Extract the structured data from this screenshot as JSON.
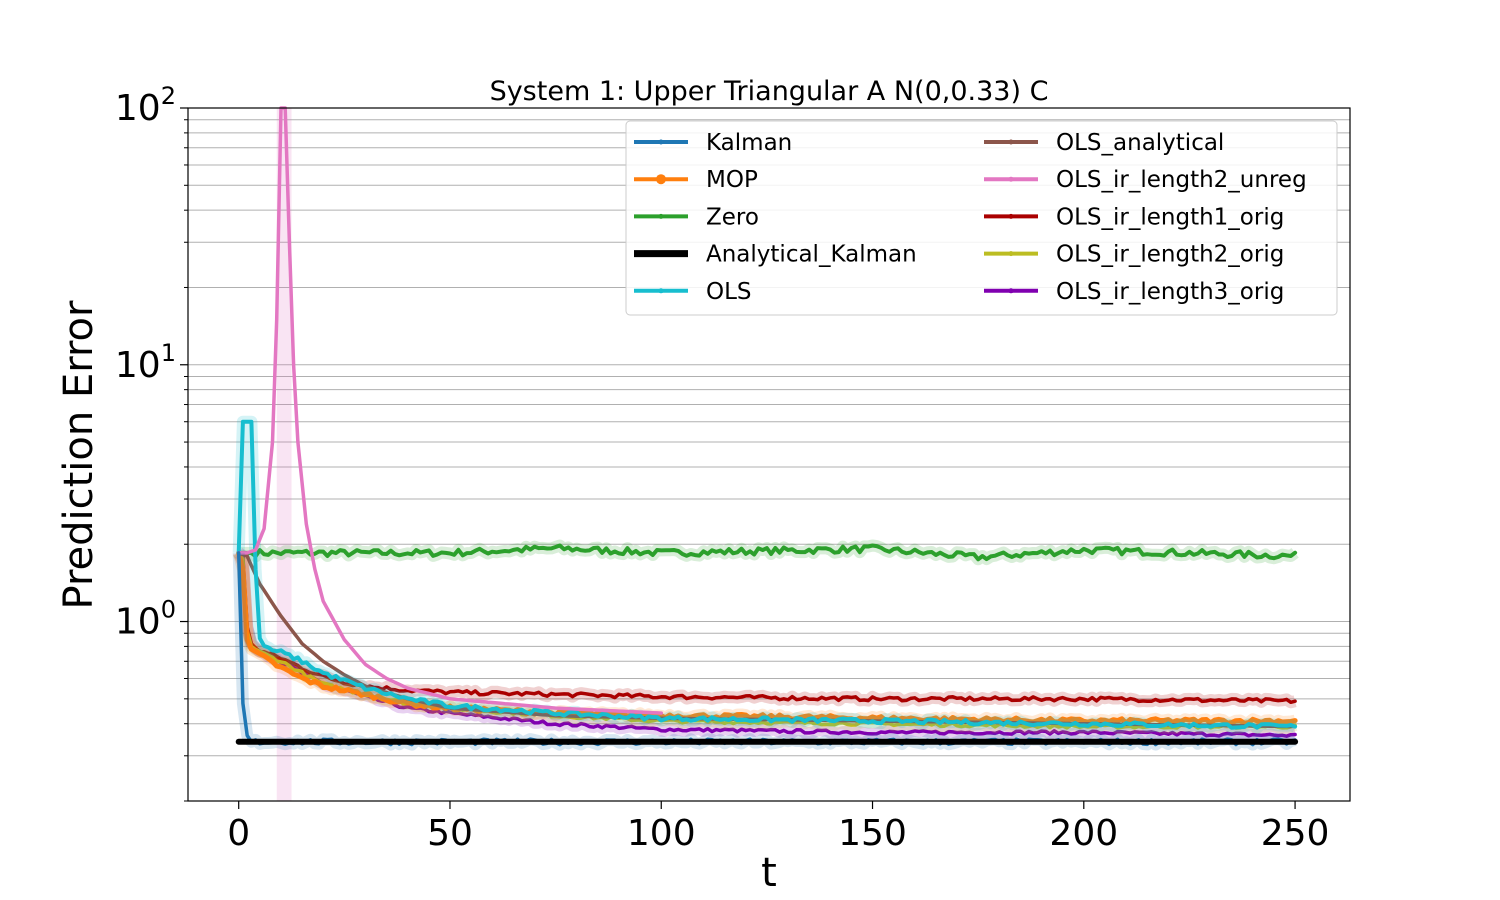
{
  "chart_data": {
    "type": "line",
    "title": "System 1: Upper Triangular A N(0,0.33) C",
    "xlabel": "t",
    "ylabel": "Prediction Error",
    "xlim": [
      -12,
      263
    ],
    "ylim": [
      0.2,
      100
    ],
    "yscale": "log",
    "grid": "horizontal (major and minor, y-axis)",
    "legend_placement": "upper right, 2 columns",
    "xticks": [
      0,
      50,
      100,
      150,
      200,
      250
    ],
    "xtick_labels": [
      "0",
      "50",
      "100",
      "150",
      "200",
      "250"
    ],
    "yticks": [
      1,
      10,
      100
    ],
    "ytick_labels": [
      {
        "base": "10",
        "exp": "0"
      },
      {
        "base": "10",
        "exp": "1"
      },
      {
        "base": "10",
        "exp": "2"
      }
    ],
    "series": [
      {
        "name": "Kalman",
        "color": "#1f77b4",
        "x": [
          0,
          1,
          2,
          3,
          5,
          10,
          20,
          50,
          100,
          150,
          200,
          250
        ],
        "y": [
          1.85,
          0.48,
          0.36,
          0.34,
          0.34,
          0.34,
          0.34,
          0.34,
          0.34,
          0.34,
          0.34,
          0.34
        ],
        "noise": 0.025
      },
      {
        "name": "MOP",
        "color": "#ff7f0e",
        "x": [
          0,
          1,
          2,
          3,
          5,
          10,
          15,
          20,
          30,
          40,
          50,
          75,
          100,
          150,
          200,
          250
        ],
        "y": [
          1.85,
          1.6,
          0.85,
          0.78,
          0.74,
          0.66,
          0.6,
          0.56,
          0.52,
          0.48,
          0.46,
          0.44,
          0.43,
          0.42,
          0.41,
          0.41
        ],
        "noise": 0.02
      },
      {
        "name": "Zero",
        "color": "#2ca02c",
        "x": [
          0,
          50,
          75,
          100,
          150,
          175,
          200,
          250
        ],
        "y": [
          1.85,
          1.85,
          1.93,
          1.85,
          1.92,
          1.78,
          1.9,
          1.8
        ],
        "noise": 0.03
      },
      {
        "name": "Analytical_Kalman",
        "color": "#000000",
        "x": [
          0,
          250
        ],
        "y": [
          0.34,
          0.34
        ],
        "noise": 0
      },
      {
        "name": "OLS",
        "color": "#17becf",
        "x": [
          0,
          1,
          2,
          3,
          4,
          5,
          7,
          10,
          15,
          20,
          30,
          40,
          50,
          75,
          100,
          150,
          200,
          250
        ],
        "y": [
          1.85,
          6.0,
          6.0,
          6.0,
          1.6,
          0.85,
          0.78,
          0.76,
          0.7,
          0.63,
          0.55,
          0.5,
          0.47,
          0.44,
          0.42,
          0.41,
          0.4,
          0.39
        ],
        "noise": 0.02
      },
      {
        "name": "OLS_analytical",
        "color": "#8c564b",
        "x": [
          0,
          2,
          3,
          5,
          10,
          15,
          20,
          25,
          30,
          40,
          50,
          75,
          100,
          150,
          200,
          250
        ],
        "y": [
          1.85,
          1.8,
          1.65,
          1.4,
          1.05,
          0.82,
          0.7,
          0.62,
          0.56,
          0.5,
          0.46,
          0.43,
          0.42,
          0.41,
          0.4,
          0.39
        ],
        "noise": 0.0
      },
      {
        "name": "OLS_ir_length2_unreg",
        "color": "#e377c2",
        "x": [
          0,
          2,
          4,
          6,
          8,
          9,
          10,
          11,
          12,
          13,
          14,
          16,
          18,
          20,
          25,
          30,
          35,
          40,
          50,
          75,
          100
        ],
        "y": [
          1.85,
          1.85,
          1.9,
          2.3,
          5.0,
          15.0,
          100.0,
          100.0,
          30.0,
          10.0,
          5.0,
          2.4,
          1.6,
          1.2,
          0.85,
          0.68,
          0.6,
          0.55,
          0.5,
          0.46,
          0.44
        ],
        "noise": 0.0
      },
      {
        "name": "OLS_ir_length1_orig",
        "color": "#aa0000",
        "x": [
          0,
          1,
          2,
          3,
          5,
          10,
          15,
          20,
          25,
          30,
          40,
          50,
          75,
          100,
          150,
          200,
          250
        ],
        "y": [
          1.85,
          1.7,
          0.95,
          0.82,
          0.77,
          0.72,
          0.66,
          0.61,
          0.58,
          0.56,
          0.54,
          0.53,
          0.52,
          0.51,
          0.5,
          0.5,
          0.49
        ],
        "noise": 0.018
      },
      {
        "name": "OLS_ir_length2_orig",
        "color": "#bcbd22",
        "x": [
          0,
          1,
          2,
          3,
          5,
          10,
          15,
          20,
          30,
          40,
          50,
          75,
          100,
          150,
          200,
          250
        ],
        "y": [
          1.85,
          1.75,
          0.92,
          0.8,
          0.76,
          0.7,
          0.63,
          0.57,
          0.52,
          0.48,
          0.46,
          0.43,
          0.41,
          0.4,
          0.39,
          0.39
        ],
        "noise": 0.015
      },
      {
        "name": "OLS_ir_length3_orig",
        "color": "#8000b0",
        "x": [
          0,
          1,
          2,
          3,
          5,
          10,
          15,
          20,
          30,
          40,
          50,
          75,
          100,
          150,
          200,
          250
        ],
        "y": [
          1.85,
          1.8,
          0.95,
          0.82,
          0.77,
          0.7,
          0.63,
          0.57,
          0.51,
          0.46,
          0.44,
          0.4,
          0.38,
          0.37,
          0.37,
          0.36
        ],
        "noise": 0.015
      }
    ]
  }
}
